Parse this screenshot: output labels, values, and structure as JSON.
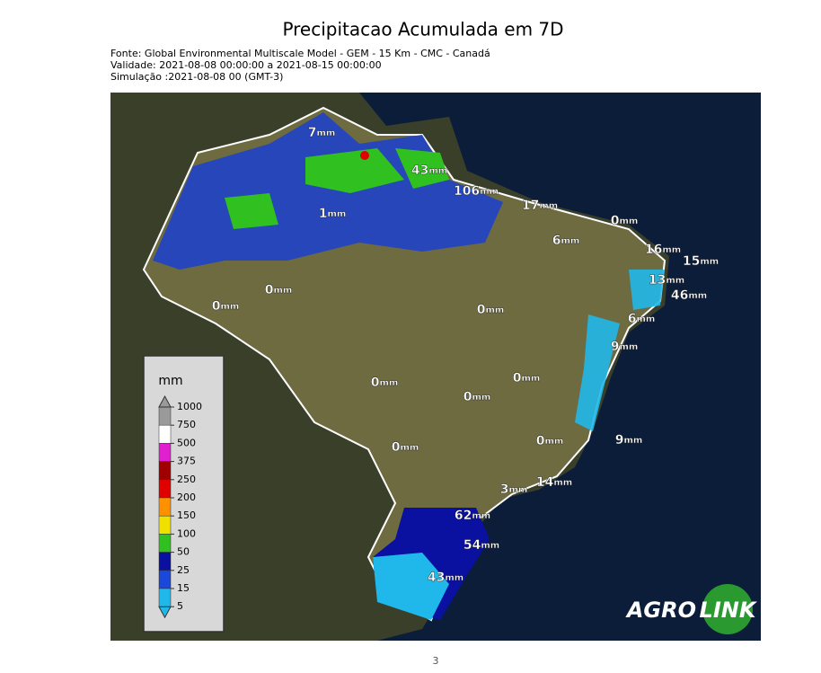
{
  "header": {
    "title": "Precipitacao Acumulada em 7D",
    "lines": [
      "Fonte: Global Environmental Multiscale Model - GEM - 15 Km - CMC - Canadá",
      "Validade: 2021-08-08 00:00:00 a 2021-08-15 00:00:00",
      "Simulação :2021-08-08 00 (GMT-3)"
    ]
  },
  "map": {
    "labels": [
      {
        "value": "7",
        "unit": "mm"
      },
      {
        "value": "43",
        "unit": "mm"
      },
      {
        "value": "106",
        "unit": "mm"
      },
      {
        "value": "17",
        "unit": "mm"
      },
      {
        "value": "0",
        "unit": "mm"
      },
      {
        "value": "1",
        "unit": "mm"
      },
      {
        "value": "6",
        "unit": "mm"
      },
      {
        "value": "16",
        "unit": "mm"
      },
      {
        "value": "15",
        "unit": "mm"
      },
      {
        "value": "13",
        "unit": "mm"
      },
      {
        "value": "46",
        "unit": "mm"
      },
      {
        "value": "0",
        "unit": "mm"
      },
      {
        "value": "0",
        "unit": "mm"
      },
      {
        "value": "0",
        "unit": "mm"
      },
      {
        "value": "6",
        "unit": "mm"
      },
      {
        "value": "9",
        "unit": "mm"
      },
      {
        "value": "0",
        "unit": "mm"
      },
      {
        "value": "0",
        "unit": "mm"
      },
      {
        "value": "0",
        "unit": "mm"
      },
      {
        "value": "0",
        "unit": "mm"
      },
      {
        "value": "0",
        "unit": "mm"
      },
      {
        "value": "9",
        "unit": "mm"
      },
      {
        "value": "14",
        "unit": "mm"
      },
      {
        "value": "3",
        "unit": "mm"
      },
      {
        "value": "62",
        "unit": "mm"
      },
      {
        "value": "54",
        "unit": "mm"
      },
      {
        "value": "43",
        "unit": "mm"
      }
    ]
  },
  "legend": {
    "unit": "mm",
    "ticks": [
      "1000",
      "750",
      "500",
      "375",
      "250",
      "200",
      "150",
      "100",
      "50",
      "25",
      "15",
      "5"
    ],
    "colors": [
      "#9a9a9a",
      "#ffffff",
      "#e020d0",
      "#a00000",
      "#e00000",
      "#ff9000",
      "#f0e000",
      "#30c020",
      "#0a10a0",
      "#1a48d8",
      "#20b8ea"
    ]
  },
  "logo": {
    "left": "AGRO",
    "right": "LINK"
  },
  "footer": {
    "page": "3"
  }
}
